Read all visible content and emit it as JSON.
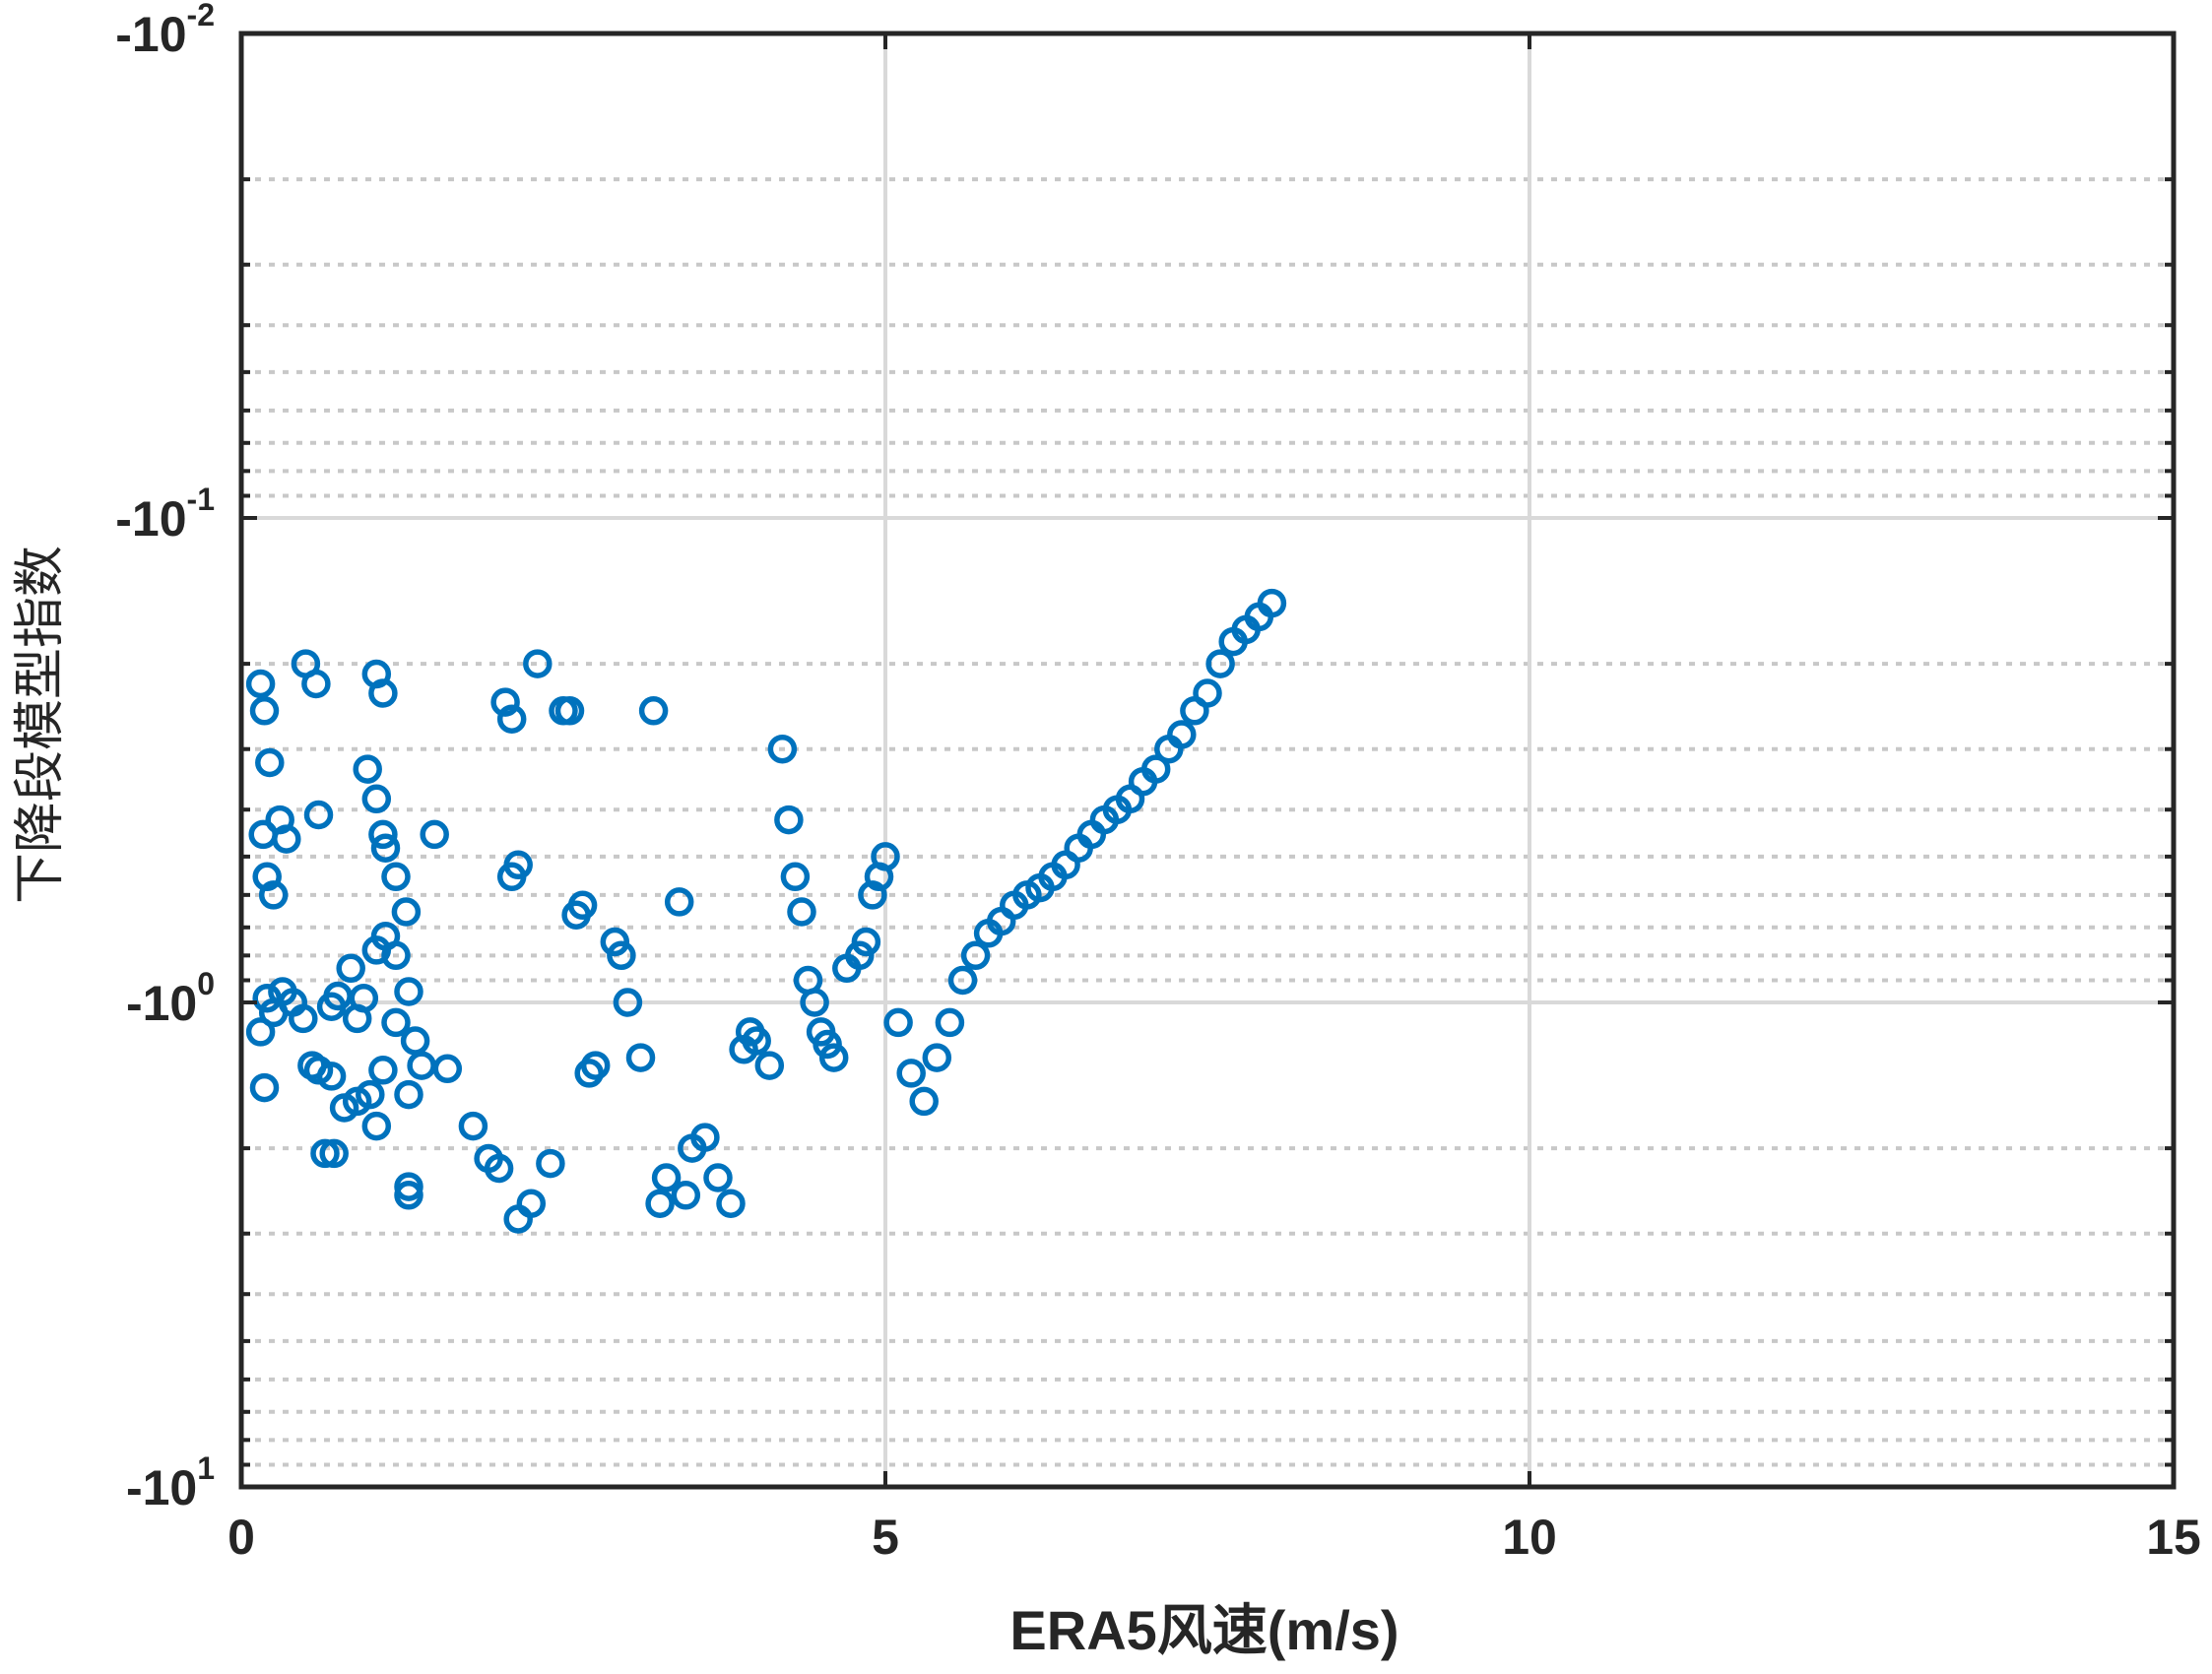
{
  "chart_data": {
    "type": "scatter",
    "xlabel": "ERA5风速(m/s)",
    "ylabel": "下降段模型指数",
    "xlim": [
      0,
      15
    ],
    "ylim": [
      -10,
      -0.01
    ],
    "yscale": "log (negative values, magnitude increases downward)",
    "x_ticks": [
      "0",
      "5",
      "10",
      "15"
    ],
    "y_ticks": [
      {
        "base": "-10",
        "exp": "-2"
      },
      {
        "base": "-10",
        "exp": "-1"
      },
      {
        "base": "-10",
        "exp": "0"
      },
      {
        "base": "-10",
        "exp": "1"
      }
    ],
    "grid": "major solid, minor dotted (y)",
    "marker": "open circle",
    "series_color": "#0072BD",
    "series": [
      {
        "values_description": "magnitude |y| of each point; y = -|y|",
        "points": [
          [
            0.15,
            0.22
          ],
          [
            0.18,
            0.25
          ],
          [
            0.22,
            0.32
          ],
          [
            0.17,
            0.45
          ],
          [
            0.2,
            0.55
          ],
          [
            0.25,
            0.6
          ],
          [
            0.3,
            0.42
          ],
          [
            0.35,
            0.46
          ],
          [
            0.2,
            0.98
          ],
          [
            0.25,
            1.05
          ],
          [
            0.15,
            1.15
          ],
          [
            0.18,
            1.5
          ],
          [
            0.32,
            0.95
          ],
          [
            0.4,
            1.0
          ],
          [
            0.5,
            0.2
          ],
          [
            0.58,
            0.22
          ],
          [
            0.6,
            0.41
          ],
          [
            0.48,
            1.08
          ],
          [
            0.55,
            1.35
          ],
          [
            0.6,
            1.38
          ],
          [
            0.7,
            1.42
          ],
          [
            0.7,
            1.02
          ],
          [
            0.75,
            0.97
          ],
          [
            0.8,
            1.65
          ],
          [
            0.65,
            2.05
          ],
          [
            0.72,
            2.05
          ],
          [
            0.9,
            1.08
          ],
          [
            0.95,
            0.98
          ],
          [
            0.9,
            1.6
          ],
          [
            1.0,
            1.55
          ],
          [
            1.05,
            1.8
          ],
          [
            1.1,
            1.38
          ],
          [
            0.85,
            0.85
          ],
          [
            1.05,
            0.78
          ],
          [
            1.12,
            0.73
          ],
          [
            1.2,
            0.8
          ],
          [
            1.28,
            0.65
          ],
          [
            1.2,
            0.55
          ],
          [
            1.3,
            0.95
          ],
          [
            1.2,
            1.1
          ],
          [
            1.35,
            1.2
          ],
          [
            1.4,
            1.35
          ],
          [
            1.3,
            1.55
          ],
          [
            0.98,
            0.33
          ],
          [
            1.05,
            0.38
          ],
          [
            1.1,
            0.45
          ],
          [
            1.12,
            0.48
          ],
          [
            1.05,
            0.21
          ],
          [
            1.1,
            0.23
          ],
          [
            1.3,
            2.4
          ],
          [
            1.3,
            2.5
          ],
          [
            1.5,
            0.45
          ],
          [
            1.6,
            1.37
          ],
          [
            1.8,
            1.8
          ],
          [
            1.92,
            2.1
          ],
          [
            2.0,
            2.2
          ],
          [
            2.05,
            0.24
          ],
          [
            2.1,
            0.26
          ],
          [
            2.15,
            0.52
          ],
          [
            2.1,
            0.55
          ],
          [
            2.15,
            2.8
          ],
          [
            2.25,
            2.6
          ],
          [
            2.3,
            0.2
          ],
          [
            2.4,
            2.15
          ],
          [
            2.5,
            0.25
          ],
          [
            2.55,
            0.25
          ],
          [
            2.65,
            0.63
          ],
          [
            2.6,
            0.66
          ],
          [
            2.7,
            1.4
          ],
          [
            2.75,
            1.35
          ],
          [
            2.9,
            0.75
          ],
          [
            2.95,
            0.8
          ],
          [
            3.0,
            1.0
          ],
          [
            3.1,
            1.3
          ],
          [
            3.2,
            0.25
          ],
          [
            3.25,
            2.6
          ],
          [
            3.3,
            2.3
          ],
          [
            3.4,
            0.62
          ],
          [
            3.45,
            2.5
          ],
          [
            3.5,
            2.0
          ],
          [
            3.6,
            1.9
          ],
          [
            3.7,
            2.3
          ],
          [
            3.8,
            2.6
          ],
          [
            3.9,
            1.25
          ],
          [
            3.95,
            1.15
          ],
          [
            4.0,
            1.2
          ],
          [
            4.1,
            1.35
          ],
          [
            4.2,
            0.3
          ],
          [
            4.25,
            0.42
          ],
          [
            4.3,
            0.55
          ],
          [
            4.35,
            0.65
          ],
          [
            4.4,
            0.9
          ],
          [
            4.45,
            1.0
          ],
          [
            4.5,
            1.15
          ],
          [
            4.55,
            1.22
          ],
          [
            4.6,
            1.3
          ],
          [
            4.7,
            0.85
          ],
          [
            4.8,
            0.8
          ],
          [
            4.85,
            0.75
          ],
          [
            4.9,
            0.6
          ],
          [
            4.95,
            0.55
          ],
          [
            5.0,
            0.5
          ],
          [
            5.1,
            1.1
          ],
          [
            5.2,
            1.4
          ],
          [
            5.3,
            1.6
          ],
          [
            5.4,
            1.3
          ],
          [
            5.5,
            1.1
          ],
          [
            5.6,
            0.9
          ],
          [
            5.7,
            0.8
          ],
          [
            5.8,
            0.72
          ],
          [
            5.9,
            0.68
          ],
          [
            6.0,
            0.63
          ],
          [
            6.1,
            0.6
          ],
          [
            6.2,
            0.58
          ],
          [
            6.3,
            0.55
          ],
          [
            6.4,
            0.52
          ],
          [
            6.5,
            0.48
          ],
          [
            6.6,
            0.45
          ],
          [
            6.7,
            0.42
          ],
          [
            6.8,
            0.4
          ],
          [
            6.9,
            0.38
          ],
          [
            7.0,
            0.35
          ],
          [
            7.1,
            0.33
          ],
          [
            7.2,
            0.3
          ],
          [
            7.3,
            0.28
          ],
          [
            7.4,
            0.25
          ],
          [
            7.5,
            0.23
          ],
          [
            7.6,
            0.2
          ],
          [
            7.7,
            0.18
          ],
          [
            7.8,
            0.17
          ],
          [
            7.9,
            0.16
          ],
          [
            8.0,
            0.15
          ]
        ]
      }
    ]
  }
}
